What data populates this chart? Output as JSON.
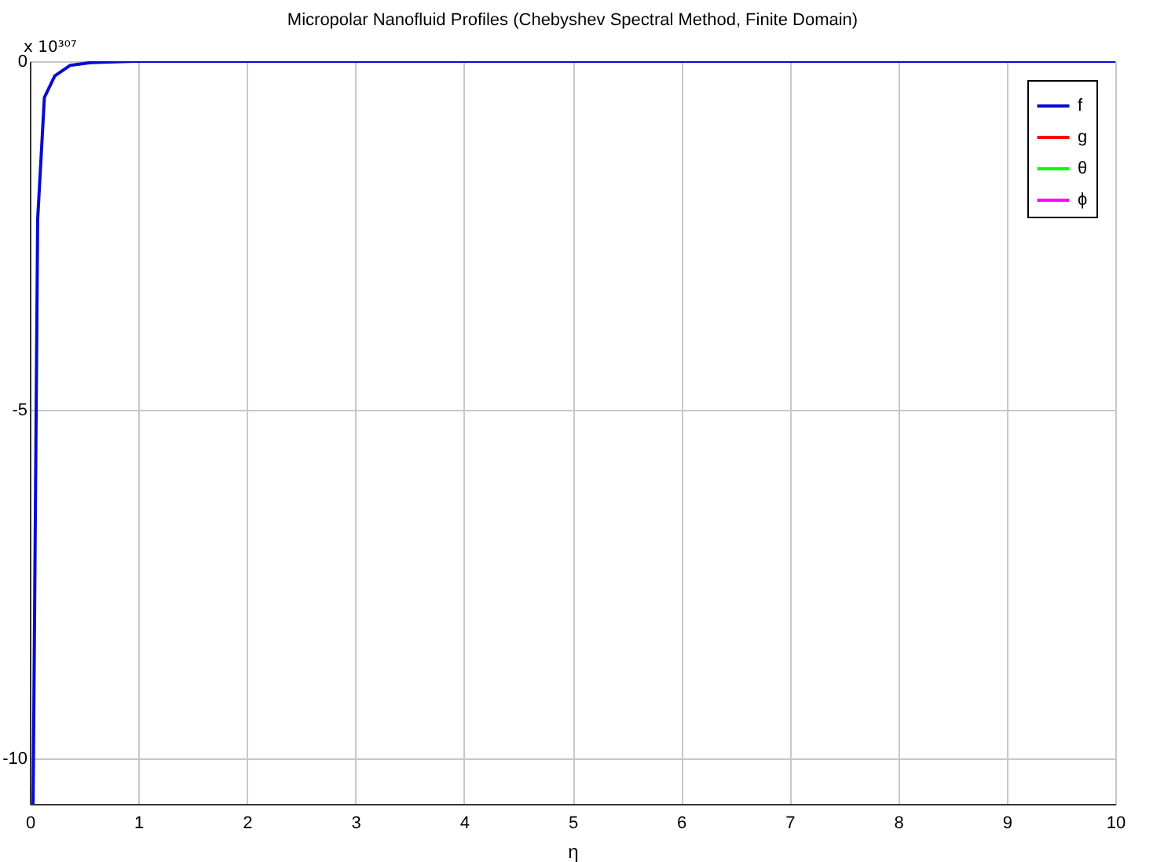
{
  "chart_data": {
    "type": "line",
    "title": "Micropolar Nanofluid Profiles (Chebyshev Spectral Method, Finite Domain)",
    "xlabel": "η",
    "annotations": [
      "x 10³⁰⁷"
    ],
    "x": [
      0.03,
      0.072,
      0.134,
      0.23,
      0.37,
      0.56,
      0.97,
      10
    ],
    "series": [
      {
        "name": "f",
        "color": "#0a0ad0",
        "values": [
          -10.65,
          -2.27,
          -0.52,
          -0.21,
          -0.06,
          -0.02,
          0,
          0
        ]
      },
      {
        "name": "g",
        "color": "#ff0000",
        "values": [
          null,
          null,
          null,
          null,
          null,
          null,
          null,
          null
        ]
      },
      {
        "name": "θ",
        "color": "#00ff00",
        "values": [
          null,
          null,
          null,
          null,
          null,
          null,
          null,
          null
        ]
      },
      {
        "name": "ϕ",
        "color": "#ff00ff",
        "values": [
          null,
          null,
          null,
          null,
          null,
          null,
          null,
          null
        ]
      }
    ],
    "xlim": [
      0,
      10
    ],
    "ylim": [
      -10.65,
      0
    ],
    "xticks": [
      0,
      1,
      2,
      3,
      4,
      5,
      6,
      7,
      8,
      9,
      10
    ],
    "yticks": [
      0,
      -5,
      -10
    ],
    "grid": true,
    "legend": "top right",
    "line_style": "solid"
  }
}
